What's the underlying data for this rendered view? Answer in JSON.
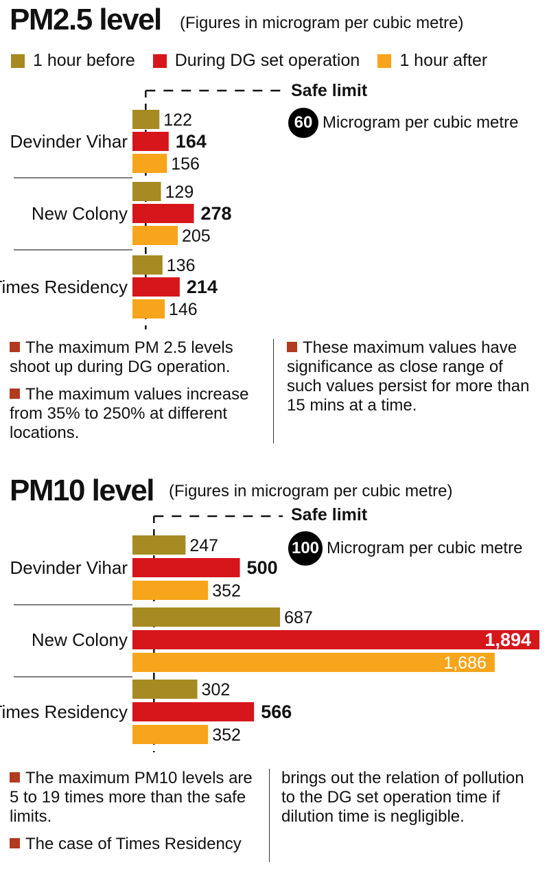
{
  "colors": {
    "before": "#a68a22",
    "during": "#d7161c",
    "after": "#f7a51b",
    "bullet": "#b23a1e"
  },
  "legend": {
    "before": "1 hour before",
    "during": "During DG set operation",
    "after": "1 hour after"
  },
  "pm25": {
    "title": "PM2.5 level",
    "subtitle": "(Figures in microgram per cubic metre)",
    "safe_label": "Safe limit",
    "safe_value": "60",
    "safe_unit": "Microgram per cubic metre",
    "notes_left": [
      "The maximum PM 2.5 levels shoot up during DG operation.",
      "The maximum values increase from 35% to 250% at different locations."
    ],
    "notes_right": [
      "These maximum values have significance as close range of such values persist for  more than 15 mins at a time."
    ]
  },
  "pm10": {
    "title": "PM10 level",
    "subtitle": "(Figures in microgram per cubic metre)",
    "safe_label": "Safe limit",
    "safe_value": "100",
    "safe_unit": "Microgram per cubic metre",
    "notes_left": [
      "The maximum PM10 levels are 5 to 19 times more than the safe limits.",
      "The case of Times Residency"
    ],
    "notes_right_text": "brings out the relation of pollution to the DG set operation time if dilution time is negligible."
  },
  "chart_data": [
    {
      "type": "bar",
      "orientation": "horizontal",
      "title": "PM2.5 level",
      "subtitle": "(Figures in microgram per cubic metre)",
      "categories": [
        "Devinder Vihar",
        "New Colony",
        "Times Residency"
      ],
      "series": [
        {
          "name": "1 hour before",
          "values": [
            122,
            129,
            136
          ],
          "labels": [
            "122",
            "129",
            "136"
          ]
        },
        {
          "name": "During DG set operation",
          "values": [
            164,
            278,
            214
          ],
          "labels": [
            "164",
            "278",
            "214"
          ]
        },
        {
          "name": "1 hour after",
          "values": [
            156,
            205,
            146
          ],
          "labels": [
            "156",
            "205",
            "146"
          ]
        }
      ],
      "reference_line": {
        "label": "Safe limit",
        "value": 60
      },
      "legend_position": "top",
      "grid": false
    },
    {
      "type": "bar",
      "orientation": "horizontal",
      "title": "PM10 level",
      "subtitle": "(Figures in microgram per cubic metre)",
      "categories": [
        "Devinder Vihar",
        "New Colony",
        "Times Residency"
      ],
      "series": [
        {
          "name": "1 hour before",
          "values": [
            247,
            687,
            302
          ],
          "labels": [
            "247",
            "687",
            "302"
          ]
        },
        {
          "name": "During DG set operation",
          "values": [
            500,
            1894,
            566
          ],
          "labels": [
            "500",
            "1,894",
            "566"
          ]
        },
        {
          "name": "1 hour after",
          "values": [
            352,
            1686,
            352
          ],
          "labels": [
            "352",
            "1,686",
            "352"
          ]
        }
      ],
      "reference_line": {
        "label": "Safe limit",
        "value": 100
      },
      "legend_position": "top",
      "grid": false
    }
  ]
}
